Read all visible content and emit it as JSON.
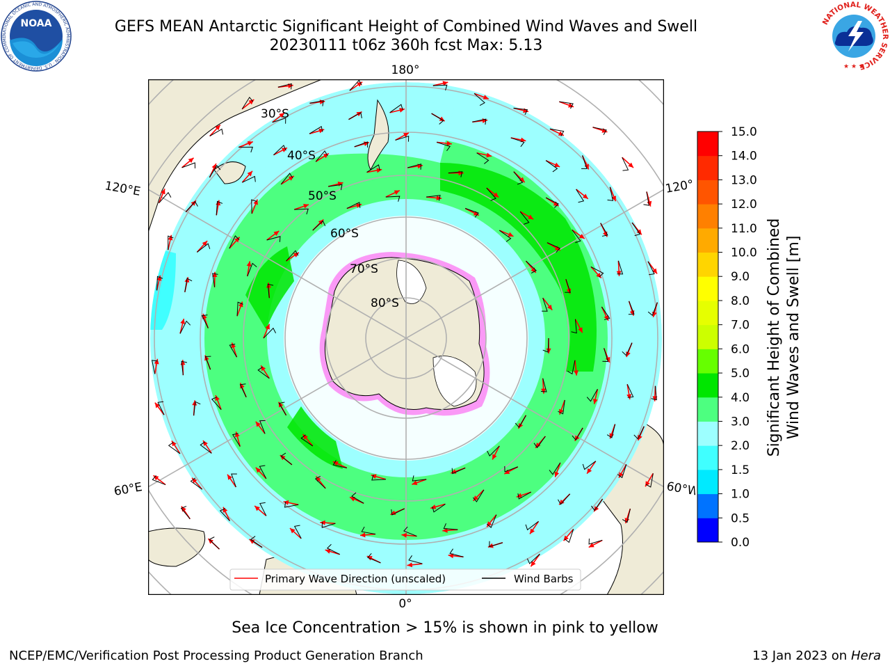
{
  "header": {
    "title_line1": "GEFS MEAN Antarctic Significant Height of Combined Wind Waves and Swell",
    "title_line2": "20230111 t06z 360h fcst   Max: 5.13",
    "noaa_logo_text": "NOAA",
    "noaa_ring_text": "NATIONAL OCEANIC AND ATMOSPHERIC ADMINISTRATION · U.S. DEPARTMENT OF COMMERCE",
    "nws_ring_text": "NATIONAL WEATHER SERVICE"
  },
  "map": {
    "projection": "south-polar-stereographic",
    "lon_labels": {
      "top": "180°",
      "bottom": "0°",
      "upper_left": "120°E",
      "lower_left": "60°E",
      "upper_right": "120°",
      "lower_right": "60°W"
    },
    "lat_labels": [
      "30°S",
      "40°S",
      "50°S",
      "60°S",
      "70°S",
      "80°S"
    ],
    "colors": {
      "land": "#efebd7",
      "ice_shelf": "#ffffff",
      "sea_ice_edge": "#ff33ee",
      "wave_direction_arrow": "#ff0000",
      "wind_barb": "#000000",
      "graticule": "#b0b0b0"
    },
    "legend": {
      "items": [
        {
          "label": "Primary Wave Direction (unscaled)",
          "color": "#ff0000"
        },
        {
          "label": "Wind Barbs",
          "color": "#000000"
        }
      ]
    }
  },
  "colorbar": {
    "label_line1": "Significant Height of Combined",
    "label_line2": "Wind Waves and Swell [m]",
    "ticks": [
      "0.0",
      "0.5",
      "1.0",
      "1.5",
      "2.0",
      "3.0",
      "4.0",
      "5.0",
      "6.0",
      "7.0",
      "8.0",
      "9.0",
      "10.0",
      "11.0",
      "12.0",
      "13.0",
      "14.0",
      "15.0"
    ],
    "colors": [
      "#0000ff",
      "#0073ff",
      "#00eaff",
      "#40ffff",
      "#9dffff",
      "#4dff80",
      "#00e600",
      "#66ff00",
      "#ccff00",
      "#e6ff00",
      "#ffff00",
      "#ffd500",
      "#ffaa00",
      "#ff8000",
      "#ff5500",
      "#ff2a00",
      "#ff0000"
    ]
  },
  "footer": {
    "caption": "Sea Ice Concentration > 15% is shown in pink to yellow",
    "credit": "NCEP/EMC/Verification Post Processing Product Generation Branch",
    "date_text": "13 Jan 2023 on ",
    "machine": "Hera"
  }
}
